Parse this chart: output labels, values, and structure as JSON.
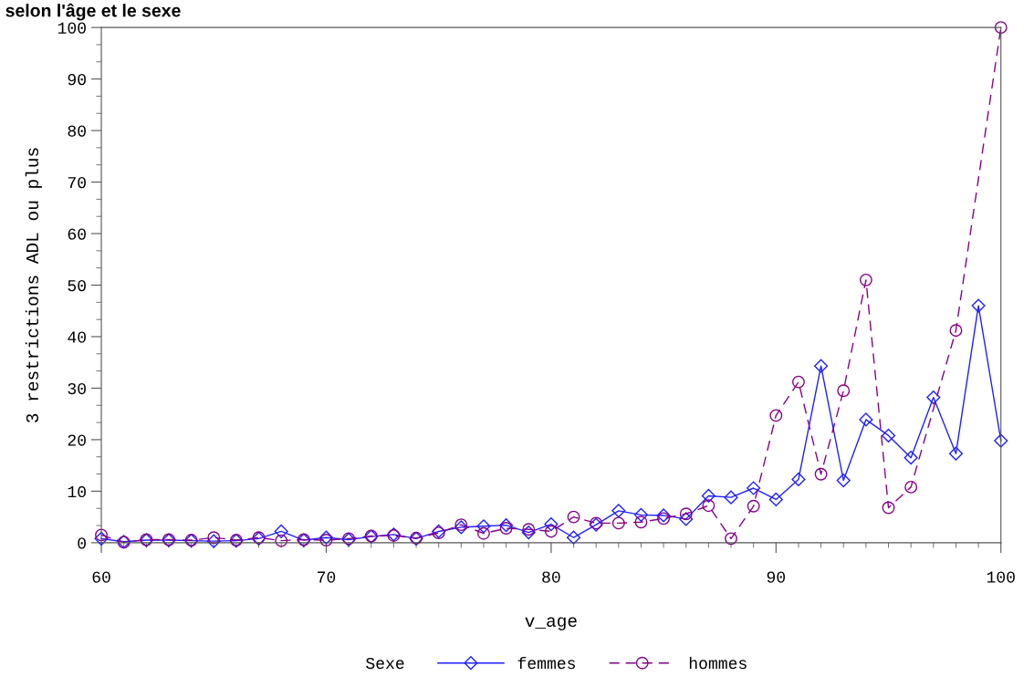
{
  "chart_data": {
    "type": "line",
    "title": "selon l'âge et le sexe",
    "xlabel": "v_age",
    "ylabel": "3 restrictions ADL ou plus",
    "legend_title": "Sexe",
    "x": [
      60,
      61,
      62,
      63,
      64,
      65,
      66,
      67,
      68,
      69,
      70,
      71,
      72,
      73,
      74,
      75,
      76,
      77,
      78,
      79,
      80,
      81,
      82,
      83,
      84,
      85,
      86,
      87,
      88,
      89,
      90,
      91,
      92,
      93,
      94,
      95,
      96,
      97,
      98,
      99,
      100
    ],
    "series": [
      {
        "name": "femmes",
        "color": "#2020ff",
        "marker": "diamond",
        "line_style": "solid",
        "values": [
          0.8,
          0.2,
          0.5,
          0.5,
          0.4,
          0.3,
          0.4,
          0.8,
          2.2,
          0.5,
          1.0,
          0.6,
          1.2,
          1.6,
          0.8,
          2.2,
          3.0,
          3.2,
          3.4,
          2.0,
          3.6,
          1.0,
          3.5,
          6.2,
          5.4,
          5.3,
          4.6,
          9.1,
          8.8,
          10.6,
          8.4,
          12.3,
          34.3,
          12.1,
          23.9,
          20.8,
          16.5,
          28.2,
          17.3,
          46.0,
          19.8
        ]
      },
      {
        "name": "hommes",
        "color": "#880088",
        "marker": "circle",
        "line_style": "dashed",
        "values": [
          1.5,
          0.1,
          0.6,
          0.6,
          0.5,
          1.0,
          0.5,
          1.0,
          0.4,
          0.6,
          0.5,
          0.8,
          1.3,
          1.4,
          0.9,
          1.9,
          3.5,
          1.8,
          2.8,
          2.6,
          2.2,
          5.0,
          3.8,
          3.8,
          4.0,
          4.7,
          5.6,
          7.2,
          0.8,
          7.1,
          24.7,
          31.2,
          13.3,
          29.5,
          51.0,
          6.8,
          10.8,
          null,
          41.2,
          null,
          100
        ]
      }
    ],
    "xlim": [
      60,
      100
    ],
    "xticks": [
      60,
      70,
      80,
      90,
      100
    ],
    "ylim": [
      0,
      100
    ],
    "yticks": [
      0,
      10,
      20,
      30,
      40,
      50,
      60,
      70,
      80,
      90,
      100
    ],
    "legend": "bottom",
    "grid": false
  }
}
